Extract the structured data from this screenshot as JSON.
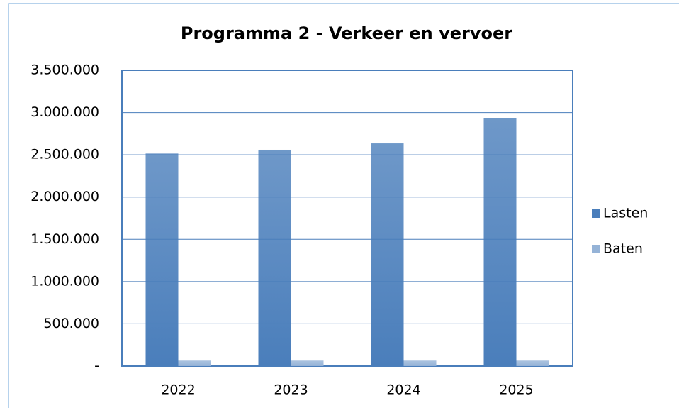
{
  "chart_data": {
    "type": "bar",
    "title": "Programma  2 - Verkeer en vervoer",
    "categories": [
      "2022",
      "2023",
      "2024",
      "2025"
    ],
    "series": [
      {
        "name": "Lasten",
        "color": "#4a7ebb",
        "values": [
          2515000,
          2560000,
          2635000,
          2935000
        ]
      },
      {
        "name": "Baten",
        "color": "#95b3d7",
        "values": [
          65000,
          65000,
          65000,
          65000
        ]
      }
    ],
    "ylim": [
      0,
      3500000
    ],
    "yticks": [
      {
        "value": 0,
        "label": "-"
      },
      {
        "value": 500000,
        "label": "500.000"
      },
      {
        "value": 1000000,
        "label": "1.000.000"
      },
      {
        "value": 1500000,
        "label": "1.500.000"
      },
      {
        "value": 2000000,
        "label": "2.000.000"
      },
      {
        "value": 2500000,
        "label": "2.500.000"
      },
      {
        "value": 3000000,
        "label": "3.000.000"
      },
      {
        "value": 3500000,
        "label": "3.500.000"
      }
    ],
    "grid": true,
    "legend": "right"
  }
}
